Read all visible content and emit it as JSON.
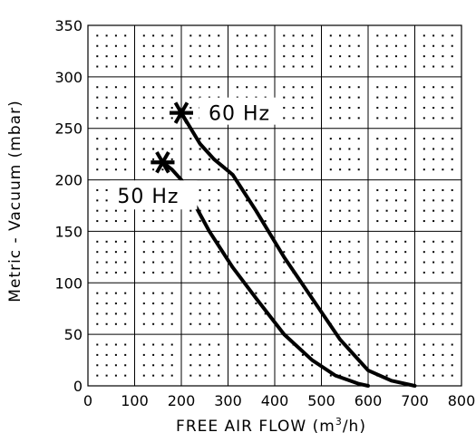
{
  "chart_data": {
    "type": "line",
    "xlabel": "FREE AIR FLOW (m³/h)",
    "xlabel_main": "FREE AIR FLOW (m",
    "xlabel_sup": "3",
    "xlabel_tail": "/h)",
    "ylabel": "Metric - Vacuum (mbar)",
    "xlim": [
      0,
      800
    ],
    "ylim": [
      0,
      350
    ],
    "x_ticks": [
      0,
      100,
      200,
      300,
      400,
      500,
      600,
      700,
      800
    ],
    "x_tick_labels": [
      "0",
      "100",
      "200",
      "300",
      "400",
      "500",
      "600",
      "700",
      "800"
    ],
    "y_ticks": [
      0,
      50,
      100,
      150,
      200,
      250,
      300,
      350
    ],
    "y_tick_labels": [
      "0",
      "50",
      "100",
      "150",
      "200",
      "250",
      "300",
      "350"
    ],
    "grid": true,
    "grid_style": "solid major lines every 100 m3/h and 50 mbar, dotted minor points",
    "series": [
      {
        "name": "60 Hz",
        "marker": "asterisk at start point",
        "x": [
          200,
          240,
          270,
          310,
          360,
          420,
          480,
          540,
          600,
          650,
          700
        ],
        "y": [
          265,
          235,
          220,
          205,
          170,
          125,
          85,
          45,
          15,
          5,
          0
        ]
      },
      {
        "name": "50 Hz",
        "marker": "asterisk at start point",
        "x": [
          160,
          180,
          200,
          230,
          260,
          310,
          360,
          420,
          480,
          530,
          580,
          600
        ],
        "y": [
          217,
          210,
          200,
          175,
          150,
          115,
          85,
          50,
          25,
          10,
          2,
          0
        ]
      }
    ],
    "colors": {
      "line": "#000000",
      "grid": "#000000",
      "background": "#ffffff"
    }
  }
}
